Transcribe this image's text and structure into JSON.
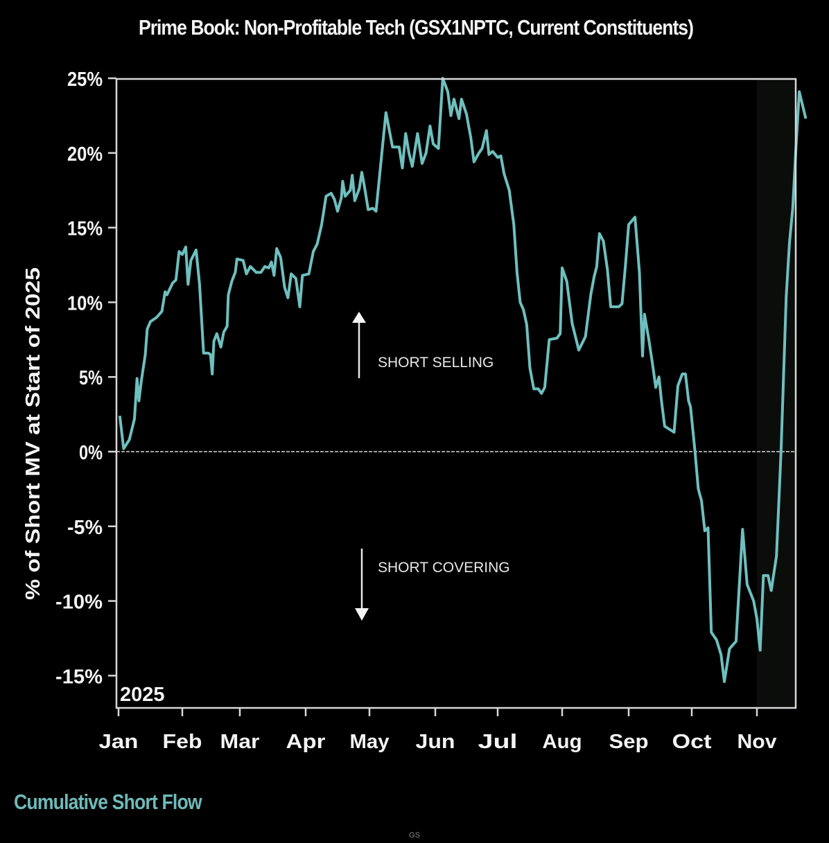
{
  "chart_data": {
    "type": "line",
    "title": "Prime Book: Non-Profitable Tech (GSX1NPTC, Current Constituents)",
    "subtitle": "Cumulative Short Flow",
    "footer": "GS",
    "ylabel": "% of Short MV at Start of 2025",
    "xlabel": "",
    "year_label": "2025",
    "ylim": [
      -17.1,
      25
    ],
    "xlim": [
      0,
      10.6
    ],
    "yticks": [
      25,
      20,
      15,
      10,
      5,
      0,
      -5,
      -10,
      -15
    ],
    "ytick_labels": [
      "25%",
      "20%",
      "15%",
      "10%",
      "5%",
      "0%",
      "-5%",
      "-10%",
      "-15%"
    ],
    "xticks": [
      0,
      1,
      2,
      3,
      4,
      5,
      6,
      7,
      8,
      9,
      10
    ],
    "xtick_labels": [
      "Jan",
      "Feb",
      "Mar",
      "Apr",
      "May",
      "Jun",
      "Jul",
      "Aug",
      "Sep",
      "Oct",
      "Nov"
    ],
    "x_unit": "months since Jan 1, 2025",
    "shaded_region": {
      "from": 10,
      "to": 10.6
    },
    "zero_line": true,
    "grid": false,
    "annotations": [
      {
        "text": "SHORT SELLING",
        "arrow": "up",
        "x": 3.7,
        "y": 5.9
      },
      {
        "text": "SHORT COVERING",
        "arrow": "down",
        "x": 3.7,
        "y": -7.7
      }
    ],
    "colors": {
      "line": "#6fbfbf",
      "background": "#000000",
      "text": "#f4f4f4",
      "shade": "#0b0d0b"
    },
    "series": [
      {
        "name": "Cumulative Short Flow",
        "points": [
          [
            0.02,
            2.4
          ],
          [
            0.08,
            0.2
          ],
          [
            0.17,
            0.8
          ],
          [
            0.25,
            2.2
          ],
          [
            0.29,
            4.9
          ],
          [
            0.32,
            3.4
          ],
          [
            0.36,
            4.8
          ],
          [
            0.42,
            6.5
          ],
          [
            0.45,
            8.2
          ],
          [
            0.5,
            8.7
          ],
          [
            0.6,
            9.0
          ],
          [
            0.68,
            9.4
          ],
          [
            0.73,
            10.7
          ],
          [
            0.76,
            10.5
          ],
          [
            0.85,
            11.3
          ],
          [
            0.9,
            11.5
          ],
          [
            0.95,
            13.4
          ],
          [
            1.0,
            13.2
          ],
          [
            1.06,
            13.7
          ],
          [
            1.1,
            11.2
          ],
          [
            1.15,
            12.8
          ],
          [
            1.24,
            13.5
          ],
          [
            1.3,
            11.2
          ],
          [
            1.37,
            6.6
          ],
          [
            1.45,
            6.6
          ],
          [
            1.49,
            6.5
          ],
          [
            1.52,
            5.2
          ],
          [
            1.55,
            7.4
          ],
          [
            1.6,
            7.9
          ],
          [
            1.67,
            7.0
          ],
          [
            1.72,
            8.0
          ],
          [
            1.78,
            8.4
          ],
          [
            1.8,
            10.5
          ],
          [
            1.86,
            11.4
          ],
          [
            1.92,
            12.0
          ],
          [
            1.95,
            12.9
          ],
          [
            2.05,
            12.8
          ],
          [
            2.1,
            11.9
          ],
          [
            2.16,
            12.4
          ],
          [
            2.25,
            12.0
          ],
          [
            2.32,
            12.0
          ],
          [
            2.38,
            12.4
          ],
          [
            2.44,
            12.3
          ],
          [
            2.48,
            12.7
          ],
          [
            2.52,
            11.8
          ],
          [
            2.56,
            13.6
          ],
          [
            2.62,
            13.0
          ],
          [
            2.68,
            11.0
          ],
          [
            2.73,
            10.3
          ],
          [
            2.78,
            11.9
          ],
          [
            2.85,
            11.6
          ],
          [
            2.91,
            9.7
          ],
          [
            2.95,
            11.8
          ],
          [
            3.05,
            11.9
          ],
          [
            3.12,
            13.4
          ],
          [
            3.18,
            13.9
          ],
          [
            3.25,
            15.2
          ],
          [
            3.32,
            17.1
          ],
          [
            3.4,
            17.3
          ],
          [
            3.45,
            16.9
          ],
          [
            3.5,
            16.1
          ],
          [
            3.56,
            17.0
          ],
          [
            3.58,
            18.1
          ],
          [
            3.62,
            17.1
          ],
          [
            3.7,
            17.5
          ],
          [
            3.73,
            18.5
          ],
          [
            3.77,
            16.8
          ],
          [
            3.84,
            17.6
          ],
          [
            3.88,
            18.7
          ],
          [
            3.92,
            17.8
          ],
          [
            3.98,
            16.2
          ],
          [
            4.05,
            16.3
          ],
          [
            4.1,
            16.1
          ],
          [
            4.2,
            20.5
          ],
          [
            4.25,
            22.7
          ],
          [
            4.35,
            20.4
          ],
          [
            4.45,
            20.4
          ],
          [
            4.5,
            19.0
          ],
          [
            4.55,
            21.3
          ],
          [
            4.6,
            20.0
          ],
          [
            4.65,
            19.1
          ],
          [
            4.73,
            21.3
          ],
          [
            4.8,
            19.3
          ],
          [
            4.86,
            20.0
          ],
          [
            4.92,
            21.8
          ],
          [
            4.97,
            20.6
          ],
          [
            5.05,
            20.3
          ],
          [
            5.12,
            25.0
          ],
          [
            5.2,
            24.1
          ],
          [
            5.25,
            22.5
          ],
          [
            5.3,
            23.6
          ],
          [
            5.38,
            22.3
          ],
          [
            5.42,
            23.6
          ],
          [
            5.5,
            22.6
          ],
          [
            5.57,
            21.0
          ],
          [
            5.62,
            19.4
          ],
          [
            5.7,
            20.0
          ],
          [
            5.75,
            20.3
          ],
          [
            5.82,
            21.5
          ],
          [
            5.86,
            19.9
          ],
          [
            5.92,
            20.1
          ],
          [
            6.0,
            19.7
          ],
          [
            6.05,
            19.8
          ],
          [
            6.1,
            18.6
          ],
          [
            6.18,
            17.5
          ],
          [
            6.25,
            15.2
          ],
          [
            6.3,
            12.0
          ],
          [
            6.35,
            10.0
          ],
          [
            6.4,
            9.5
          ],
          [
            6.45,
            8.5
          ],
          [
            6.5,
            5.6
          ],
          [
            6.56,
            4.2
          ],
          [
            6.63,
            4.2
          ],
          [
            6.68,
            3.9
          ],
          [
            6.73,
            4.3
          ],
          [
            6.8,
            7.5
          ],
          [
            6.92,
            7.6
          ],
          [
            6.97,
            7.9
          ],
          [
            7.0,
            12.3
          ],
          [
            7.07,
            11.4
          ],
          [
            7.15,
            8.6
          ],
          [
            7.25,
            6.8
          ],
          [
            7.35,
            7.7
          ],
          [
            7.43,
            10.5
          ],
          [
            7.48,
            11.7
          ],
          [
            7.52,
            12.4
          ],
          [
            7.56,
            14.6
          ],
          [
            7.62,
            14.1
          ],
          [
            7.68,
            12.2
          ],
          [
            7.73,
            9.7
          ],
          [
            7.85,
            9.7
          ],
          [
            7.9,
            9.9
          ],
          [
            7.95,
            12.4
          ],
          [
            8.0,
            15.2
          ],
          [
            8.1,
            15.7
          ],
          [
            8.17,
            12.0
          ],
          [
            8.22,
            6.4
          ],
          [
            8.25,
            9.2
          ],
          [
            8.32,
            7.5
          ],
          [
            8.38,
            5.8
          ],
          [
            8.43,
            4.3
          ],
          [
            8.48,
            5.0
          ],
          [
            8.52,
            3.4
          ],
          [
            8.57,
            1.7
          ],
          [
            8.72,
            1.3
          ],
          [
            8.78,
            4.4
          ],
          [
            8.85,
            5.2
          ],
          [
            8.9,
            5.2
          ],
          [
            8.95,
            3.4
          ],
          [
            8.98,
            3.0
          ],
          [
            9.05,
            0.0
          ],
          [
            9.1,
            -2.5
          ],
          [
            9.15,
            -3.3
          ],
          [
            9.2,
            -5.3
          ],
          [
            9.25,
            -5.1
          ],
          [
            9.3,
            -12.1
          ],
          [
            9.38,
            -12.6
          ],
          [
            9.45,
            -13.6
          ],
          [
            9.5,
            -15.4
          ],
          [
            9.58,
            -13.2
          ],
          [
            9.68,
            -12.7
          ],
          [
            9.78,
            -5.2
          ],
          [
            9.85,
            -8.9
          ],
          [
            9.95,
            -10.0
          ],
          [
            10.0,
            -11.2
          ],
          [
            10.05,
            -13.3
          ],
          [
            10.1,
            -8.3
          ],
          [
            10.17,
            -8.3
          ],
          [
            10.22,
            -9.3
          ],
          [
            10.3,
            -7.0
          ],
          [
            10.37,
            0.0
          ],
          [
            10.45,
            10.4
          ],
          [
            10.5,
            14.0
          ],
          [
            10.55,
            16.3
          ],
          [
            10.6,
            20.4
          ],
          [
            10.65,
            24.1
          ],
          [
            10.75,
            22.3
          ]
        ]
      }
    ]
  }
}
